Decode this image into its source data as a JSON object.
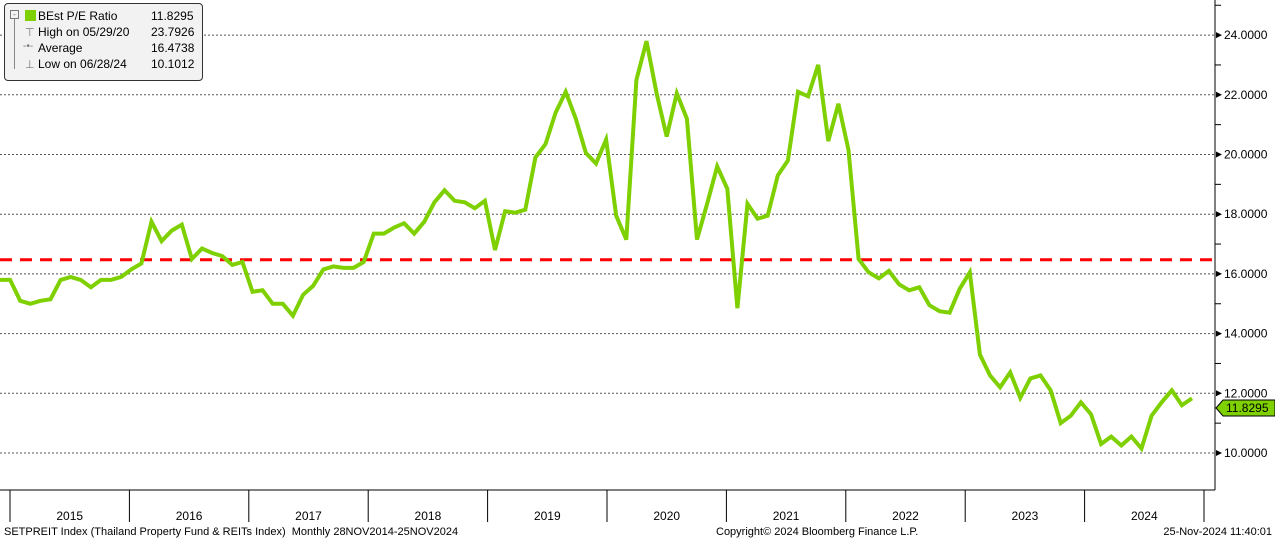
{
  "legend": {
    "series_label": "BEst P/E Ratio",
    "series_value": "11.8295",
    "high_label": "High on 05/29/20",
    "high_value": "23.7926",
    "avg_label": "Average",
    "avg_value": "16.4738",
    "low_label": "Low on 06/28/24",
    "low_value": "10.1012"
  },
  "last_value_tag": "11.8295",
  "footer": {
    "left": "SETPREIT Index (Thailand Property Fund & REITs Index)  Monthly 28NOV2014-25NOV2024",
    "center": "Copyright© 2024 Bloomberg Finance L.P.",
    "right": "25-Nov-2024 11:40:01"
  },
  "colors": {
    "series": "#7ed000",
    "average": "#ff0000",
    "grid": "#555555"
  },
  "chart_data": {
    "type": "line",
    "title": "BEst P/E Ratio",
    "frequency": "Monthly",
    "x_range": [
      "Nov 2014",
      "Nov 2024"
    ],
    "ylim": [
      9,
      25
    ],
    "y_ticks": [
      "10.0000",
      "12.0000",
      "14.0000",
      "16.0000",
      "18.0000",
      "20.0000",
      "22.0000",
      "24.0000"
    ],
    "y_tick_values": [
      10,
      12,
      14,
      16,
      18,
      20,
      22,
      24
    ],
    "x_tick_labels": [
      "2015",
      "2016",
      "2017",
      "2018",
      "2019",
      "2020",
      "2021",
      "2022",
      "2023",
      "2024"
    ],
    "average": 16.4738,
    "grid": true,
    "legend_position": "top-left",
    "series": [
      {
        "name": "BEst P/E Ratio",
        "values": [
          15.8,
          15.8,
          15.1,
          15.0,
          15.1,
          15.15,
          15.8,
          15.9,
          15.8,
          15.55,
          15.8,
          15.8,
          15.9,
          16.15,
          16.35,
          17.75,
          17.1,
          17.45,
          17.65,
          16.5,
          16.85,
          16.7,
          16.6,
          16.3,
          16.4,
          15.4,
          15.45,
          15.0,
          15.0,
          14.6,
          15.3,
          15.6,
          16.15,
          16.25,
          16.2,
          16.2,
          16.4,
          17.35,
          17.35,
          17.55,
          17.7,
          17.35,
          17.75,
          18.4,
          18.8,
          18.45,
          18.4,
          18.2,
          18.45,
          16.8,
          18.1,
          18.05,
          18.15,
          19.9,
          20.35,
          21.4,
          22.1,
          21.2,
          20.05,
          19.7,
          20.5,
          17.95,
          17.15,
          22.5,
          23.8,
          22.05,
          20.6,
          22.05,
          21.2,
          17.15,
          18.35,
          19.6,
          18.85,
          14.85,
          18.35,
          17.85,
          17.95,
          19.3,
          19.8,
          22.1,
          21.95,
          23.0,
          20.45,
          21.7,
          20.15,
          16.5,
          16.05,
          15.85,
          16.1,
          15.65,
          15.45,
          15.55,
          14.95,
          14.75,
          14.7,
          15.5,
          16.05,
          13.3,
          12.6,
          12.2,
          12.7,
          11.85,
          12.5,
          12.6,
          12.1,
          11.0,
          11.25,
          11.7,
          11.3,
          10.3,
          10.55,
          10.25,
          10.55,
          10.15,
          11.25,
          11.7,
          12.1,
          11.6,
          11.83
        ]
      }
    ]
  }
}
